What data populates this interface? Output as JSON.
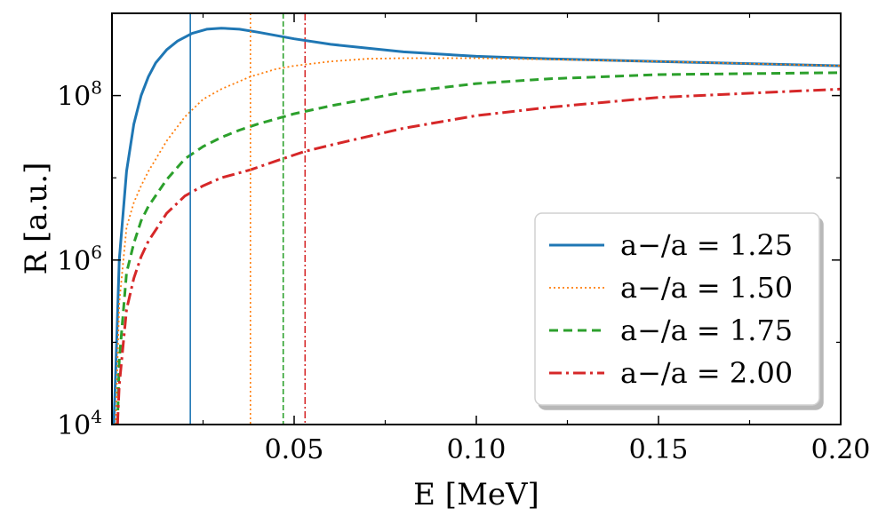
{
  "chart_data": {
    "type": "line",
    "xlabel": "E [MeV]",
    "ylabel": "R [a.u.]",
    "xlim": [
      0.0,
      0.2
    ],
    "ylim": [
      10000,
      1000000000
    ],
    "yscale": "log",
    "grid": false,
    "legend_position": "lower-right",
    "x_ticks": [
      {
        "value": 0.05,
        "label": "0.05"
      },
      {
        "value": 0.1,
        "label": "0.10"
      },
      {
        "value": 0.15,
        "label": "0.15"
      },
      {
        "value": 0.2,
        "label": "0.20"
      }
    ],
    "y_ticks": [
      {
        "value": 10000,
        "base": "10",
        "exp": "4"
      },
      {
        "value": 1000000,
        "base": "10",
        "exp": "6"
      },
      {
        "value": 100000000,
        "base": "10",
        "exp": "8"
      }
    ],
    "series": [
      {
        "name": "a−/a = 1.25",
        "color": "#1f77b4",
        "style": "solid",
        "vline_x": 0.0215,
        "x": [
          0.0005,
          0.001,
          0.002,
          0.004,
          0.006,
          0.008,
          0.01,
          0.012,
          0.015,
          0.018,
          0.022,
          0.026,
          0.03,
          0.035,
          0.04,
          0.05,
          0.06,
          0.08,
          0.1,
          0.12,
          0.15,
          0.2
        ],
        "y": [
          10000,
          40000,
          1000000,
          12000000,
          45000000,
          100000000,
          170000000,
          250000000,
          360000000,
          460000000,
          570000000,
          640000000,
          660000000,
          640000000,
          590000000,
          490000000,
          420000000,
          340000000,
          300000000,
          280000000,
          260000000,
          230000000
        ]
      },
      {
        "name": "a−/a = 1.50",
        "color": "#ff7f0e",
        "style": "dotted",
        "vline_x": 0.038,
        "x": [
          0.001,
          0.002,
          0.004,
          0.006,
          0.008,
          0.01,
          0.015,
          0.02,
          0.025,
          0.03,
          0.038,
          0.045,
          0.05,
          0.06,
          0.07,
          0.08,
          0.1,
          0.12,
          0.15,
          0.2
        ],
        "y": [
          10000,
          300000,
          2500000,
          5000000,
          8000000,
          12000000,
          28000000,
          55000000,
          90000000,
          120000000,
          170000000,
          210000000,
          230000000,
          260000000,
          280000000,
          285000000,
          285000000,
          275000000,
          260000000,
          230000000
        ]
      },
      {
        "name": "a−/a = 1.75",
        "color": "#2ca02c",
        "style": "dashed",
        "vline_x": 0.047,
        "x": [
          0.0015,
          0.002,
          0.004,
          0.006,
          0.008,
          0.01,
          0.015,
          0.02,
          0.025,
          0.03,
          0.035,
          0.04,
          0.047,
          0.05,
          0.06,
          0.08,
          0.1,
          0.12,
          0.15,
          0.2
        ],
        "y": [
          10000,
          60000,
          700000,
          1600000,
          3000000,
          4500000,
          9500000,
          17000000,
          24000000,
          31000000,
          38000000,
          45000000,
          55000000,
          60000000,
          75000000,
          110000000,
          140000000,
          160000000,
          180000000,
          190000000
        ]
      },
      {
        "name": "a−/a = 2.00",
        "color": "#d62728",
        "style": "dashdot",
        "vline_x": 0.053,
        "x": [
          0.0015,
          0.002,
          0.004,
          0.006,
          0.008,
          0.01,
          0.015,
          0.02,
          0.025,
          0.03,
          0.038,
          0.045,
          0.053,
          0.06,
          0.08,
          0.1,
          0.12,
          0.15,
          0.2
        ],
        "y": [
          10000,
          30000,
          250000,
          600000,
          1100000,
          1700000,
          3700000,
          6000000,
          8000000,
          10000000,
          12500000,
          16000000,
          21000000,
          25000000,
          40000000,
          57000000,
          72000000,
          95000000,
          120000000
        ]
      }
    ]
  }
}
